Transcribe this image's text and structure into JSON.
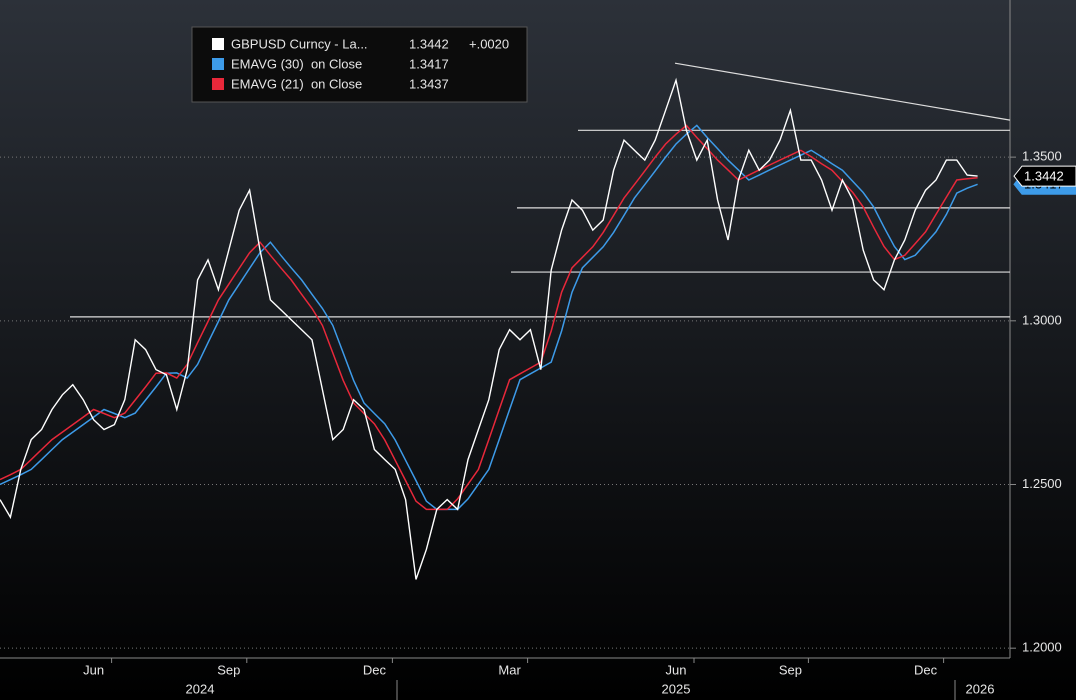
{
  "chart_data": {
    "type": "line",
    "title_legend_change": {
      "value": 0.002,
      "label": "+.0020"
    },
    "categories": [
      null,
      null,
      null,
      null,
      null,
      null,
      null,
      null,
      null,
      "Jun",
      null,
      null,
      null,
      null,
      null,
      null,
      null,
      null,
      null,
      null,
      null,
      null,
      "Sep",
      null,
      null,
      null,
      null,
      null,
      null,
      null,
      null,
      null,
      null,
      null,
      null,
      null,
      "Dec",
      null,
      null,
      null,
      null,
      null,
      null,
      null,
      null,
      null,
      null,
      null,
      null,
      "Mar",
      null,
      null,
      null,
      null,
      null,
      null,
      null,
      null,
      null,
      null,
      null,
      null,
      null,
      null,
      null,
      "Jun",
      null,
      null,
      null,
      null,
      null,
      null,
      null,
      null,
      null,
      null,
      "Sep",
      null,
      null,
      null,
      null,
      null,
      null,
      null,
      null,
      null,
      null,
      null,
      null,
      "Dec",
      null,
      null,
      null,
      null,
      null
    ],
    "x_groups": [
      "2024",
      "2025",
      "2026"
    ],
    "series": [
      {
        "name": "GBPUSD Curncy - La...",
        "color": "#ffffff",
        "last": 1.3442,
        "values": [
          1.2454,
          1.24,
          1.2546,
          1.2637,
          1.2668,
          1.2729,
          1.2774,
          1.2805,
          1.2759,
          1.2698,
          1.2668,
          1.2683,
          1.2759,
          1.2942,
          1.2912,
          1.2851,
          1.2835,
          1.2729,
          1.2851,
          1.3125,
          1.3186,
          1.3095,
          1.3216,
          1.3338,
          1.3399,
          1.3216,
          1.3064,
          1.3034,
          1.3003,
          1.2973,
          1.2942,
          1.279,
          1.2637,
          1.2668,
          1.2759,
          1.2729,
          1.2607,
          1.2576,
          1.2546,
          1.2454,
          1.221,
          1.2302,
          1.2424,
          1.2454,
          1.2424,
          1.2576,
          1.2668,
          1.2759,
          1.2912,
          1.2973,
          1.2942,
          1.2973,
          1.2851,
          1.3155,
          1.3277,
          1.3369,
          1.3338,
          1.3277,
          1.3308,
          1.346,
          1.3552,
          1.3521,
          1.3491,
          1.3552,
          1.3643,
          1.3735,
          1.3582,
          1.3491,
          1.3552,
          1.3369,
          1.3247,
          1.343,
          1.3521,
          1.346,
          1.3491,
          1.3552,
          1.3643,
          1.3491,
          1.3491,
          1.343,
          1.3338,
          1.343,
          1.3369,
          1.3216,
          1.3125,
          1.3095,
          1.3186,
          1.3247,
          1.3338,
          1.3399,
          1.343,
          1.3491,
          1.3491,
          1.3445,
          1.3442
        ]
      },
      {
        "name": "EMAVG (30)  on Close",
        "color": "#3d9be9",
        "last": 1.3417,
        "values": [
          1.25,
          1.2515,
          1.253,
          1.2546,
          1.2576,
          1.2607,
          1.2637,
          1.266,
          1.2683,
          1.2706,
          1.2729,
          1.2717,
          1.2704,
          1.2718,
          1.2758,
          1.2798,
          1.284,
          1.2841,
          1.2825,
          1.2867,
          1.2933,
          1.2998,
          1.3064,
          1.3112,
          1.316,
          1.3208,
          1.324,
          1.32,
          1.3162,
          1.3125,
          1.3081,
          1.3038,
          1.2986,
          1.2902,
          1.2818,
          1.2749,
          1.2717,
          1.2685,
          1.2636,
          1.2574,
          1.2512,
          1.2449,
          1.2424,
          1.2424,
          1.2424,
          1.2456,
          1.2501,
          1.2546,
          1.2637,
          1.2729,
          1.282,
          1.2838,
          1.2856,
          1.2874,
          1.2969,
          1.3087,
          1.3162,
          1.3194,
          1.3226,
          1.327,
          1.3322,
          1.3375,
          1.3416,
          1.3458,
          1.35,
          1.354,
          1.357,
          1.3597,
          1.356,
          1.3526,
          1.3491,
          1.3461,
          1.343,
          1.3445,
          1.3461,
          1.3476,
          1.3491,
          1.3506,
          1.3521,
          1.3501,
          1.348,
          1.346,
          1.3426,
          1.3392,
          1.3348,
          1.3286,
          1.3227,
          1.3187,
          1.32,
          1.3236,
          1.3272,
          1.3325,
          1.339,
          1.3405,
          1.3417
        ]
      },
      {
        "name": "EMAVG (21)  on Close",
        "color": "#e8283a",
        "last": 1.3437,
        "values": [
          1.2515,
          1.253,
          1.2546,
          1.2576,
          1.2607,
          1.2637,
          1.266,
          1.2683,
          1.2706,
          1.2729,
          1.2717,
          1.2704,
          1.2718,
          1.2758,
          1.2798,
          1.284,
          1.2841,
          1.2825,
          1.2867,
          1.2933,
          1.2998,
          1.3064,
          1.3112,
          1.316,
          1.3208,
          1.324,
          1.32,
          1.3162,
          1.3125,
          1.3081,
          1.3038,
          1.2986,
          1.2902,
          1.2818,
          1.2749,
          1.2717,
          1.2685,
          1.2636,
          1.2574,
          1.2512,
          1.2449,
          1.2424,
          1.2424,
          1.2424,
          1.2456,
          1.2501,
          1.2546,
          1.2637,
          1.2729,
          1.282,
          1.2838,
          1.2856,
          1.2874,
          1.2969,
          1.3087,
          1.3162,
          1.3194,
          1.3226,
          1.327,
          1.3322,
          1.3375,
          1.3416,
          1.3458,
          1.35,
          1.354,
          1.357,
          1.3597,
          1.356,
          1.3526,
          1.3491,
          1.3461,
          1.343,
          1.3445,
          1.3461,
          1.3476,
          1.3491,
          1.3506,
          1.3521,
          1.3501,
          1.348,
          1.346,
          1.3426,
          1.3392,
          1.3348,
          1.3286,
          1.3227,
          1.3187,
          1.32,
          1.3236,
          1.3272,
          1.3325,
          1.3378,
          1.343,
          1.3434,
          1.3437
        ]
      }
    ],
    "horizontal_lines": [
      1.3582,
      1.3345,
      1.3149,
      1.3012
    ],
    "trend_line": [
      1.3787,
      1.3613
    ],
    "ylim": [
      1.197,
      1.398
    ],
    "yticks": [
      {
        "value": 1.2,
        "label": "1.2000"
      },
      {
        "value": 1.25,
        "label": "1.2500"
      },
      {
        "value": 1.3,
        "label": "1.3000"
      },
      {
        "value": 1.35,
        "label": "1.3500"
      }
    ],
    "grid": true
  }
}
